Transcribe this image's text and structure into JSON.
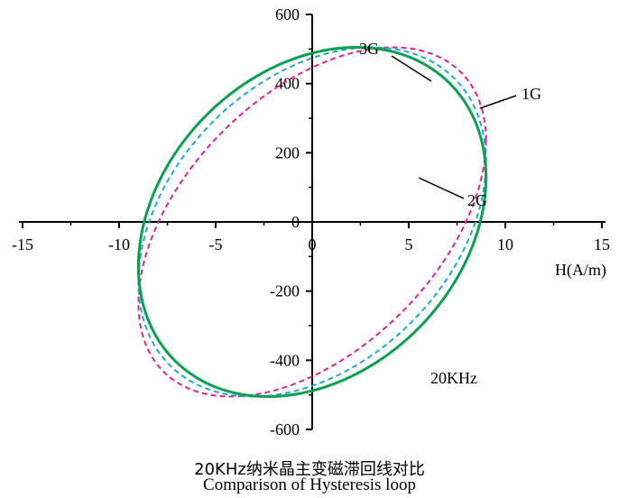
{
  "chart_data": {
    "type": "line",
    "title": "20KHz纳米晶主变磁滞回线对比",
    "subtitle": "Comparison of Hysteresis loop",
    "xlabel": "H(A/m)",
    "ylabel": "",
    "xlim": [
      -15,
      15
    ],
    "ylim": [
      -600,
      600
    ],
    "x_ticks": [
      -15,
      -10,
      -5,
      0,
      5,
      10,
      15
    ],
    "x_tick_labels": [
      "-15",
      "-10",
      "-5",
      "0",
      "5",
      "10",
      "15"
    ],
    "y_ticks": [
      -600,
      -400,
      -200,
      0,
      200,
      400,
      600
    ],
    "y_tick_labels": [
      "-600",
      "-400",
      "-200",
      "0",
      "200",
      "400",
      "600"
    ],
    "annotation": "20KHz",
    "series": [
      {
        "name": "1G",
        "color": "#e0248a",
        "style": "dashed",
        "loop": {
          "tip_x": 9.0,
          "tip_y": 505,
          "coercivity": 4.2,
          "remanence": 210
        }
      },
      {
        "name": "2G",
        "color": "#20a8d8",
        "style": "dashed",
        "loop": {
          "tip_x": 9.0,
          "tip_y": 505,
          "coercivity": 3.1,
          "remanence": 150
        }
      },
      {
        "name": "3G",
        "color": "#0aa050",
        "style": "solid",
        "loop": {
          "tip_x": 9.0,
          "tip_y": 505,
          "coercivity": 2.3,
          "remanence": 110
        }
      }
    ]
  }
}
